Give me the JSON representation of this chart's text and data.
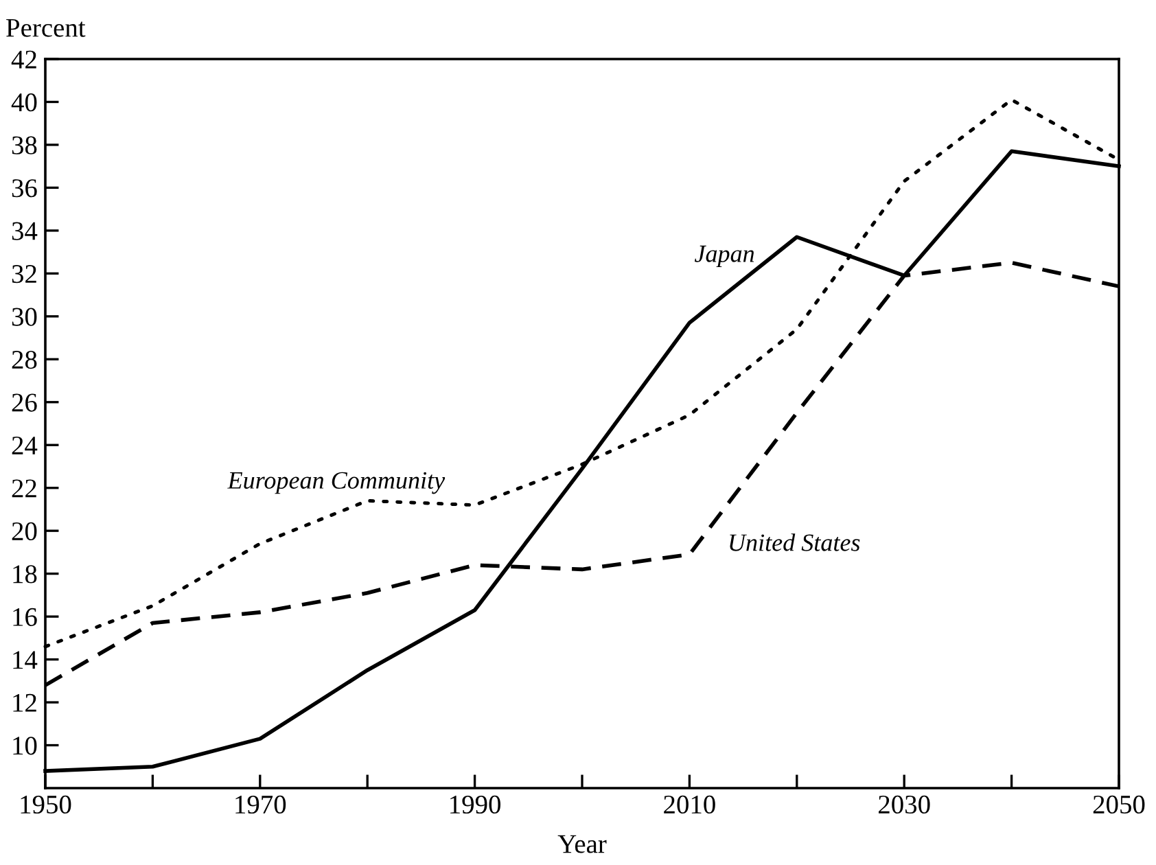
{
  "chart_data": {
    "type": "line",
    "ylabel": "Percent",
    "xlabel": "Year",
    "x": [
      1950,
      1960,
      1970,
      1980,
      1990,
      2000,
      2010,
      2020,
      2030,
      2040,
      2050
    ],
    "series": [
      {
        "name": "Japan",
        "color": "#000000",
        "line_style": "solid",
        "values": [
          8.8,
          9.0,
          10.3,
          13.5,
          16.3,
          22.9,
          29.7,
          33.7,
          31.9,
          37.7,
          37.0
        ]
      },
      {
        "name": "European Community",
        "color": "#000000",
        "line_style": "dotted",
        "values": [
          14.6,
          16.5,
          19.4,
          21.4,
          21.2,
          23.1,
          25.4,
          29.4,
          36.3,
          40.1,
          37.3
        ]
      },
      {
        "name": "United States",
        "color": "#000000",
        "line_style": "dashed",
        "values": [
          12.8,
          15.7,
          16.2,
          17.1,
          18.4,
          18.2,
          18.9,
          25.5,
          31.9,
          32.5,
          31.4
        ]
      }
    ],
    "xlim": [
      1950,
      2050
    ],
    "xticks": [
      1950,
      {
        "value": 1960,
        "label": null
      },
      1970,
      {
        "value": 1980,
        "label": null
      },
      1990,
      {
        "value": 2000,
        "label": null
      },
      2010,
      {
        "value": 2020,
        "label": null
      },
      2030,
      {
        "value": 2040,
        "label": null
      },
      2050
    ],
    "ylim": [
      8,
      42
    ],
    "yticks": [
      10,
      12,
      14,
      16,
      18,
      20,
      22,
      24,
      26,
      28,
      30,
      32,
      34,
      36,
      38,
      40,
      42
    ],
    "grid": false,
    "legend": false,
    "marker": "none"
  }
}
